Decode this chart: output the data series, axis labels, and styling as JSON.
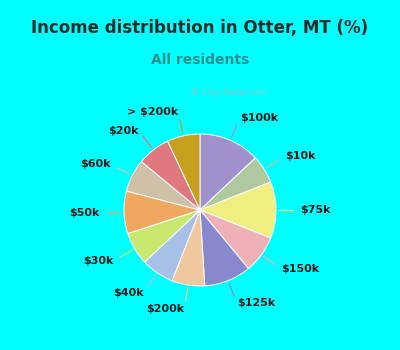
{
  "title": "Income distribution in Otter, MT (%)",
  "subtitle": "All residents",
  "watermark": "© City-Data.com",
  "bg_cyan": "#00FFFF",
  "slices": [
    {
      "label": "$100k",
      "value": 13,
      "color": "#a090cc"
    },
    {
      "label": "$10k",
      "value": 6,
      "color": "#b0c8a0"
    },
    {
      "label": "$75k",
      "value": 12,
      "color": "#f0f080"
    },
    {
      "label": "$150k",
      "value": 8,
      "color": "#f0b0b8"
    },
    {
      "label": "$125k",
      "value": 10,
      "color": "#8888cc"
    },
    {
      "label": "$200k",
      "value": 7,
      "color": "#f0c8a0"
    },
    {
      "label": "$40k",
      "value": 7,
      "color": "#a8c0e8"
    },
    {
      "label": "$30k",
      "value": 7,
      "color": "#c8e870"
    },
    {
      "label": "$50k",
      "value": 9,
      "color": "#f0a860"
    },
    {
      "label": "$60k",
      "value": 7,
      "color": "#d0c0a8"
    },
    {
      "label": "$20k",
      "value": 7,
      "color": "#e07880"
    },
    {
      "label": "> $200k",
      "value": 7,
      "color": "#c8a020"
    }
  ],
  "title_fontsize": 12,
  "subtitle_fontsize": 10,
  "label_fontsize": 8,
  "figsize": [
    4.0,
    3.5
  ],
  "dpi": 100
}
